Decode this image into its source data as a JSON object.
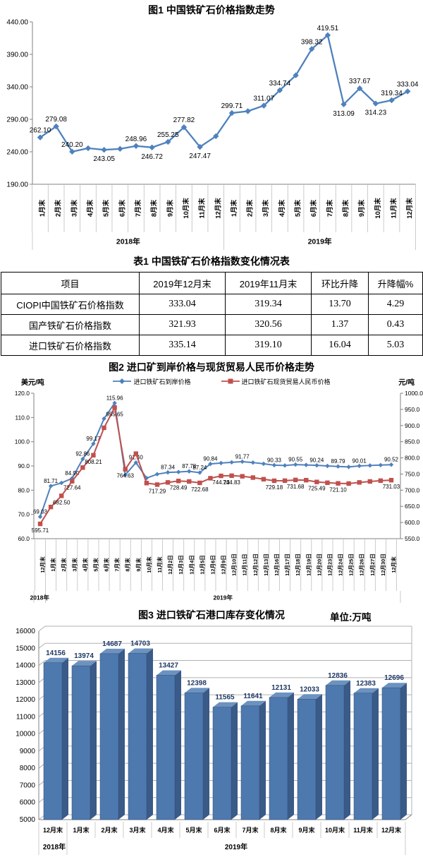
{
  "page_background": "#ffffff",
  "table": {
    "title": "表1 中国铁矿石价格指数变化情况表",
    "headers": [
      "项目",
      "2019年12月末",
      "2019年11月末",
      "环比升降",
      "升降幅%"
    ],
    "rows": [
      [
        "CIOPI中国铁矿石价格指数",
        "333.04",
        "319.34",
        "13.70",
        "4.29"
      ],
      [
        "国产铁矿石价格指数",
        "321.93",
        "320.56",
        "1.37",
        "0.43"
      ],
      [
        "进口铁矿石价格指数",
        "335.14",
        "319.10",
        "16.04",
        "5.03"
      ]
    ]
  },
  "chart_data": [
    {
      "type": "line",
      "title": "图1 中国铁矿石价格指数走势",
      "line_color": "#4F81BD",
      "ylim": [
        190,
        440
      ],
      "y_ticks": [
        "440.00",
        "390.00",
        "340.00",
        "290.00",
        "240.00",
        "190.00"
      ],
      "year_groups": [
        {
          "label": "2018年",
          "count": 12
        },
        {
          "label": "2019年",
          "count": 12
        }
      ],
      "categories": [
        "1月末",
        "2月末",
        "3月末",
        "4月末",
        "5月末",
        "6月末",
        "7月末",
        "8月末",
        "9月末",
        "10月末",
        "11月末",
        "12月末",
        "1月末",
        "2月末",
        "3月末",
        "4月末",
        "5月末",
        "6月末",
        "7月末",
        "8月末",
        "9月末",
        "10月末",
        "11月末",
        "12月末"
      ],
      "values": [
        262.1,
        279.08,
        240.2,
        245.5,
        243.05,
        244.5,
        248.96,
        246.72,
        255.25,
        277.82,
        247.47,
        264.0,
        299.71,
        302.5,
        311.07,
        334.74,
        357.7,
        398.32,
        419.51,
        313.09,
        337.67,
        314.23,
        319.34,
        333.04
      ],
      "labels": [
        "262.10",
        "279.08",
        "240.20",
        "",
        "243.05",
        "",
        "248.96",
        "246.72",
        "255.25",
        "277.82",
        "247.47",
        "",
        "299.71",
        "",
        "311.07",
        "334.74",
        "",
        "398.32",
        "419.51",
        "313.09",
        "337.67",
        "314.23",
        "319.34",
        "333.04"
      ],
      "label_pos": [
        "a",
        "a",
        "a",
        "",
        "b",
        "",
        "a",
        "b",
        "a",
        "a",
        "b",
        "",
        "a",
        "",
        "a",
        "a",
        "",
        "a",
        "a",
        "b",
        "a",
        "b",
        "a",
        "a"
      ]
    },
    {
      "type": "line",
      "title": "图2 进口矿到岸价格与现货贸易人民币价格走势",
      "left_axis_unit": "美元/吨",
      "right_axis_unit": "元/吨",
      "left_lim": [
        60,
        120
      ],
      "right_lim": [
        550,
        1000
      ],
      "left_ticks": [
        "120.0",
        "110.0",
        "100.0",
        "90.0",
        "80.0",
        "70.0",
        "60.0"
      ],
      "right_ticks": [
        "1000.0",
        "950.0",
        "900.0",
        "850.0",
        "800.0",
        "750.0",
        "700.0",
        "650.0",
        "600.0",
        "550.0"
      ],
      "year_groups": [
        {
          "label": "2018年",
          "count": 1
        },
        {
          "label": "2019年",
          "count": 33
        }
      ],
      "categories": [
        "12月末",
        "1月末",
        "2月末",
        "3月末",
        "4月末",
        "5月末",
        "6月末",
        "7月末",
        "8月末",
        "9月末",
        "10月末",
        "11月末",
        "12月2日",
        "12月3日",
        "12月4日",
        "12月5日",
        "12月6日",
        "12月9日",
        "12月10日",
        "12月11日",
        "12月12日",
        "12月13日",
        "12月16日",
        "12月17日",
        "12月18日",
        "12月19日",
        "12月20日",
        "12月23日",
        "12月24日",
        "12月25日",
        "12月26日",
        "12月27日",
        "12月30日",
        "12月末"
      ],
      "series": [
        {
          "name": "进口铁矿石到岸价格",
          "color": "#4F81BD",
          "marker": "diamond",
          "axis": "left",
          "values": [
            69.03,
            81.71,
            83.0,
            84.9,
            92.86,
            99.17,
            109.5,
            115.96,
            86.3,
            91.4,
            85.0,
            86.6,
            87.34,
            87.5,
            87.78,
            87.24,
            90.84,
            91.2,
            91.5,
            91.77,
            91.4,
            90.9,
            90.33,
            90.2,
            90.55,
            90.4,
            90.24,
            90.0,
            89.79,
            89.6,
            90.01,
            90.2,
            90.35,
            90.52
          ],
          "labels": [
            "69.03",
            "81.71",
            "",
            "84.90",
            "92.86",
            "99.17",
            "",
            "115.96",
            "",
            "91.40",
            "",
            "",
            "87.34",
            "",
            "87.78",
            "87.24",
            "90.84",
            "",
            "",
            "91.77",
            "",
            "",
            "90.33",
            "",
            "90.55",
            "",
            "90.24",
            "",
            "89.79",
            "",
            "90.01",
            "",
            "",
            "90.52"
          ]
        },
        {
          "name": "进口铁矿石现货贸易人民币价格",
          "color": "#C0504D",
          "marker": "square",
          "axis": "right",
          "values": [
            595.71,
            648,
            682.5,
            727.64,
            770,
            808.21,
            893,
            955.65,
            764.63,
            813,
            722,
            717.29,
            724,
            728.49,
            727,
            722.68,
            737,
            744.23,
            744.83,
            743,
            739,
            734,
            729.18,
            729.5,
            731.68,
            731,
            725.49,
            723,
            721.1,
            720.5,
            724,
            727,
            729.5,
            731.03
          ],
          "labels": [
            "595.71",
            "",
            "682.50",
            "727.64",
            "",
            "808.21",
            "",
            "955.65",
            "764.63",
            "",
            "",
            "717.29",
            "",
            "728.49",
            "",
            "722.68",
            "",
            "744.23",
            "744.83",
            "",
            "",
            "",
            "729.18",
            "",
            "731.68",
            "",
            "725.49",
            "",
            "721.10",
            "",
            "",
            "",
            "",
            "731.03"
          ]
        }
      ]
    },
    {
      "type": "bar",
      "title": "图3 进口铁矿石港口库存变化情况",
      "unit_label": "单位:万吨",
      "ylim": [
        5000,
        16000
      ],
      "y_ticks": [
        "16000",
        "15000",
        "14000",
        "13000",
        "12000",
        "11000",
        "10000",
        "9000",
        "8000",
        "7000",
        "6000",
        "5000"
      ],
      "bar_colors": {
        "front": "#4E79AE",
        "side": "#3A5A88",
        "top": "#6C92C0",
        "edge": "#2E4D74"
      },
      "label_color": "#1F3864",
      "year_groups": [
        {
          "label": "2018年",
          "count": 1
        },
        {
          "label": "2019年",
          "count": 12
        }
      ],
      "categories": [
        "12月末",
        "1月末",
        "2月末",
        "3月末",
        "4月末",
        "5月末",
        "6月末",
        "7月末",
        "8月末",
        "9月末",
        "10月末",
        "11月末",
        "12月末"
      ],
      "values": [
        14156,
        13974,
        14687,
        14703,
        13427,
        12398,
        11565,
        11641,
        12131,
        12033,
        12836,
        12383,
        12696
      ]
    }
  ]
}
